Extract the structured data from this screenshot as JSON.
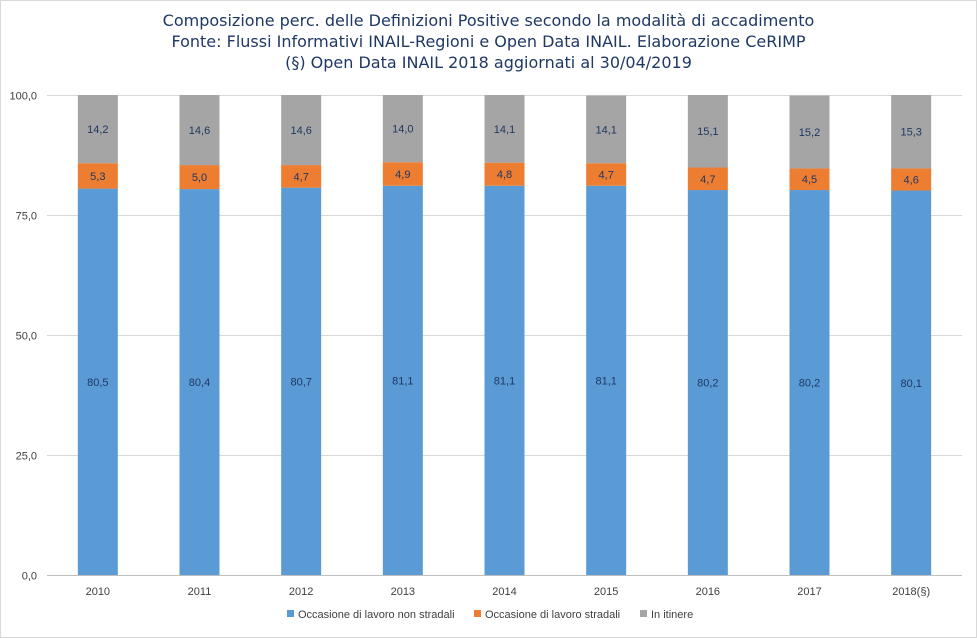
{
  "chart_data": {
    "type": "bar",
    "stacked": true,
    "title": [
      "Composizione perc. delle Definizioni Positive secondo la modalità di accadimento",
      "Fonte: Flussi Informativi INAIL-Regioni e Open Data INAIL. Elaborazione CeRIMP",
      "(§) Open Data INAIL 2018  aggiornati al 30/04/2019"
    ],
    "categories": [
      "2010",
      "2011",
      "2012",
      "2013",
      "2014",
      "2015",
      "2016",
      "2017",
      "2018(§)"
    ],
    "ylim": [
      0,
      100
    ],
    "yticks": [
      "0,0",
      "25,0",
      "50,0",
      "75,0",
      "100,0"
    ],
    "ytick_values": [
      0,
      25,
      50,
      75,
      100
    ],
    "grid": true,
    "legend_position": "bottom",
    "series": [
      {
        "name": "Occasione di lavoro non stradali",
        "color": "#5b9bd5",
        "values": [
          80.5,
          80.4,
          80.7,
          81.1,
          81.1,
          81.1,
          80.2,
          80.2,
          80.1
        ],
        "labels": [
          "80,5",
          "80,4",
          "80,7",
          "81,1",
          "81,1",
          "81,1",
          "80,2",
          "80,2",
          "80,1"
        ]
      },
      {
        "name": "Occasione di lavoro stradali",
        "color": "#ed7d31",
        "values": [
          5.3,
          5.0,
          4.7,
          4.9,
          4.8,
          4.7,
          4.7,
          4.5,
          4.6
        ],
        "labels": [
          "5,3",
          "5,0",
          "4,7",
          "4,9",
          "4,8",
          "4,7",
          "4,7",
          "4,5",
          "4,6"
        ]
      },
      {
        "name": "In itinere",
        "color": "#a5a5a5",
        "values": [
          14.2,
          14.6,
          14.6,
          14.0,
          14.1,
          14.1,
          15.1,
          15.2,
          15.3
        ],
        "labels": [
          "14,2",
          "14,6",
          "14,6",
          "14,0",
          "14,1",
          "14,1",
          "15,1",
          "15,2",
          "15,3"
        ]
      }
    ]
  }
}
